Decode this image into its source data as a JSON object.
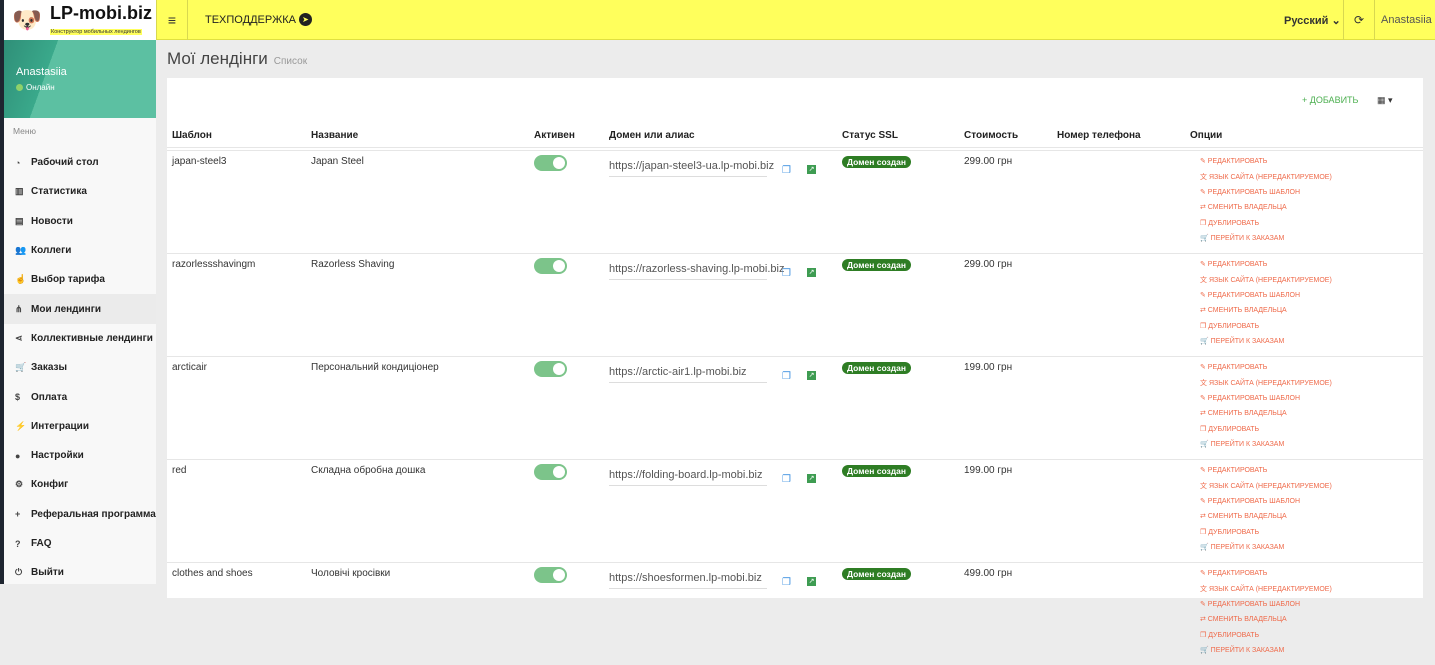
{
  "header": {
    "logo": "LP-mobi.biz",
    "logo_sub": "Конструктор мобильных лендингов",
    "support": "ТЕХПОДДЕРЖКА",
    "language": "Русский",
    "user": "Anastasiia"
  },
  "sidebar": {
    "user": "Anastasiia",
    "status": "Онлайн",
    "menu_label": "Меню",
    "items": [
      {
        "label": "Рабочий стол",
        "icon": "dashboard-icon",
        "glyph": "◔"
      },
      {
        "label": "Статистика",
        "icon": "bar-chart-icon",
        "glyph": "▥"
      },
      {
        "label": "Новости",
        "icon": "newspaper-icon",
        "glyph": "▤"
      },
      {
        "label": "Коллеги",
        "icon": "users-icon",
        "glyph": "👥"
      },
      {
        "label": "Выбор тарифа",
        "icon": "hand-pointer-icon",
        "glyph": "☝"
      },
      {
        "label": "Мои лендинги",
        "icon": "sitemap-icon",
        "glyph": "⋔"
      },
      {
        "label": "Коллективные лендинги",
        "icon": "share-icon",
        "glyph": "⋖"
      },
      {
        "label": "Заказы",
        "icon": "cart-icon",
        "glyph": "🛒"
      },
      {
        "label": "Оплата",
        "icon": "dollar-icon",
        "glyph": "$"
      },
      {
        "label": "Интеграции",
        "icon": "plug-icon",
        "glyph": "⚡"
      },
      {
        "label": "Настройки",
        "icon": "user-icon",
        "glyph": "●"
      },
      {
        "label": "Конфиг",
        "icon": "cogs-icon",
        "glyph": "⚙"
      },
      {
        "label": "Реферальная программа",
        "icon": "user-plus-icon",
        "glyph": "+"
      },
      {
        "label": "FAQ",
        "icon": "question-icon",
        "glyph": "?"
      },
      {
        "label": "Выйти",
        "icon": "power-icon",
        "glyph": "⏻"
      }
    ],
    "active_index": 5
  },
  "page": {
    "title": "Мої лендінги",
    "subtitle": "Список",
    "add": "+ ДОБАВИТЬ",
    "grid": "▦ ▾"
  },
  "table": {
    "columns": [
      "Шаблон",
      "Название",
      "Активен",
      "Домен или алиас",
      "Статус SSL",
      "Стоимость",
      "Номер телефона",
      "Опции"
    ],
    "options": [
      "✎ РЕДАКТИРОВАТЬ",
      "文 ЯЗЫК САЙТА (НЕРЕДАКТИРУЕМОЕ)",
      "✎ РЕДАКТИРОВАТЬ ШАБЛОН",
      "⇄ СМЕНИТЬ ВЛАДЕЛЬЦА",
      "❐ ДУБЛИРОВАТЬ",
      "🛒 ПЕРЕЙТИ К ЗАКАЗАМ"
    ],
    "rows": [
      {
        "template": "japan-steel3",
        "name": "Japan Steel",
        "active": true,
        "domain": "https://japan-steel3-ua.lp-mobi.biz",
        "ssl": "Домен создан",
        "price": "299.00 грн",
        "phone": ""
      },
      {
        "template": "razorlessshavingm",
        "name": "Razorless Shaving",
        "active": true,
        "domain": "https://razorless-shaving.lp-mobi.biz",
        "ssl": "Домен создан",
        "price": "299.00 грн",
        "phone": ""
      },
      {
        "template": "arcticair",
        "name": "Персональний кондиціонер",
        "active": true,
        "domain": "https://arctic-air1.lp-mobi.biz",
        "ssl": "Домен создан",
        "price": "199.00 грн",
        "phone": ""
      },
      {
        "template": "red",
        "name": "Складна обробна дошка",
        "active": true,
        "domain": "https://folding-board.lp-mobi.biz",
        "ssl": "Домен создан",
        "price": "199.00 грн",
        "phone": ""
      },
      {
        "template": "clothes and shoes",
        "name": "Чоловічі кросівки",
        "active": true,
        "domain": "https://shoesformen.lp-mobi.biz",
        "ssl": "Домен создан",
        "price": "499.00 грн",
        "phone": ""
      }
    ]
  },
  "colors": {
    "topbar": "#ffff5c",
    "sidebar_profile": "#5cc0a2",
    "ssl_badge": "#2e7d24",
    "option_link": "#ef6a4a",
    "toggle_on": "#7cc48a"
  }
}
